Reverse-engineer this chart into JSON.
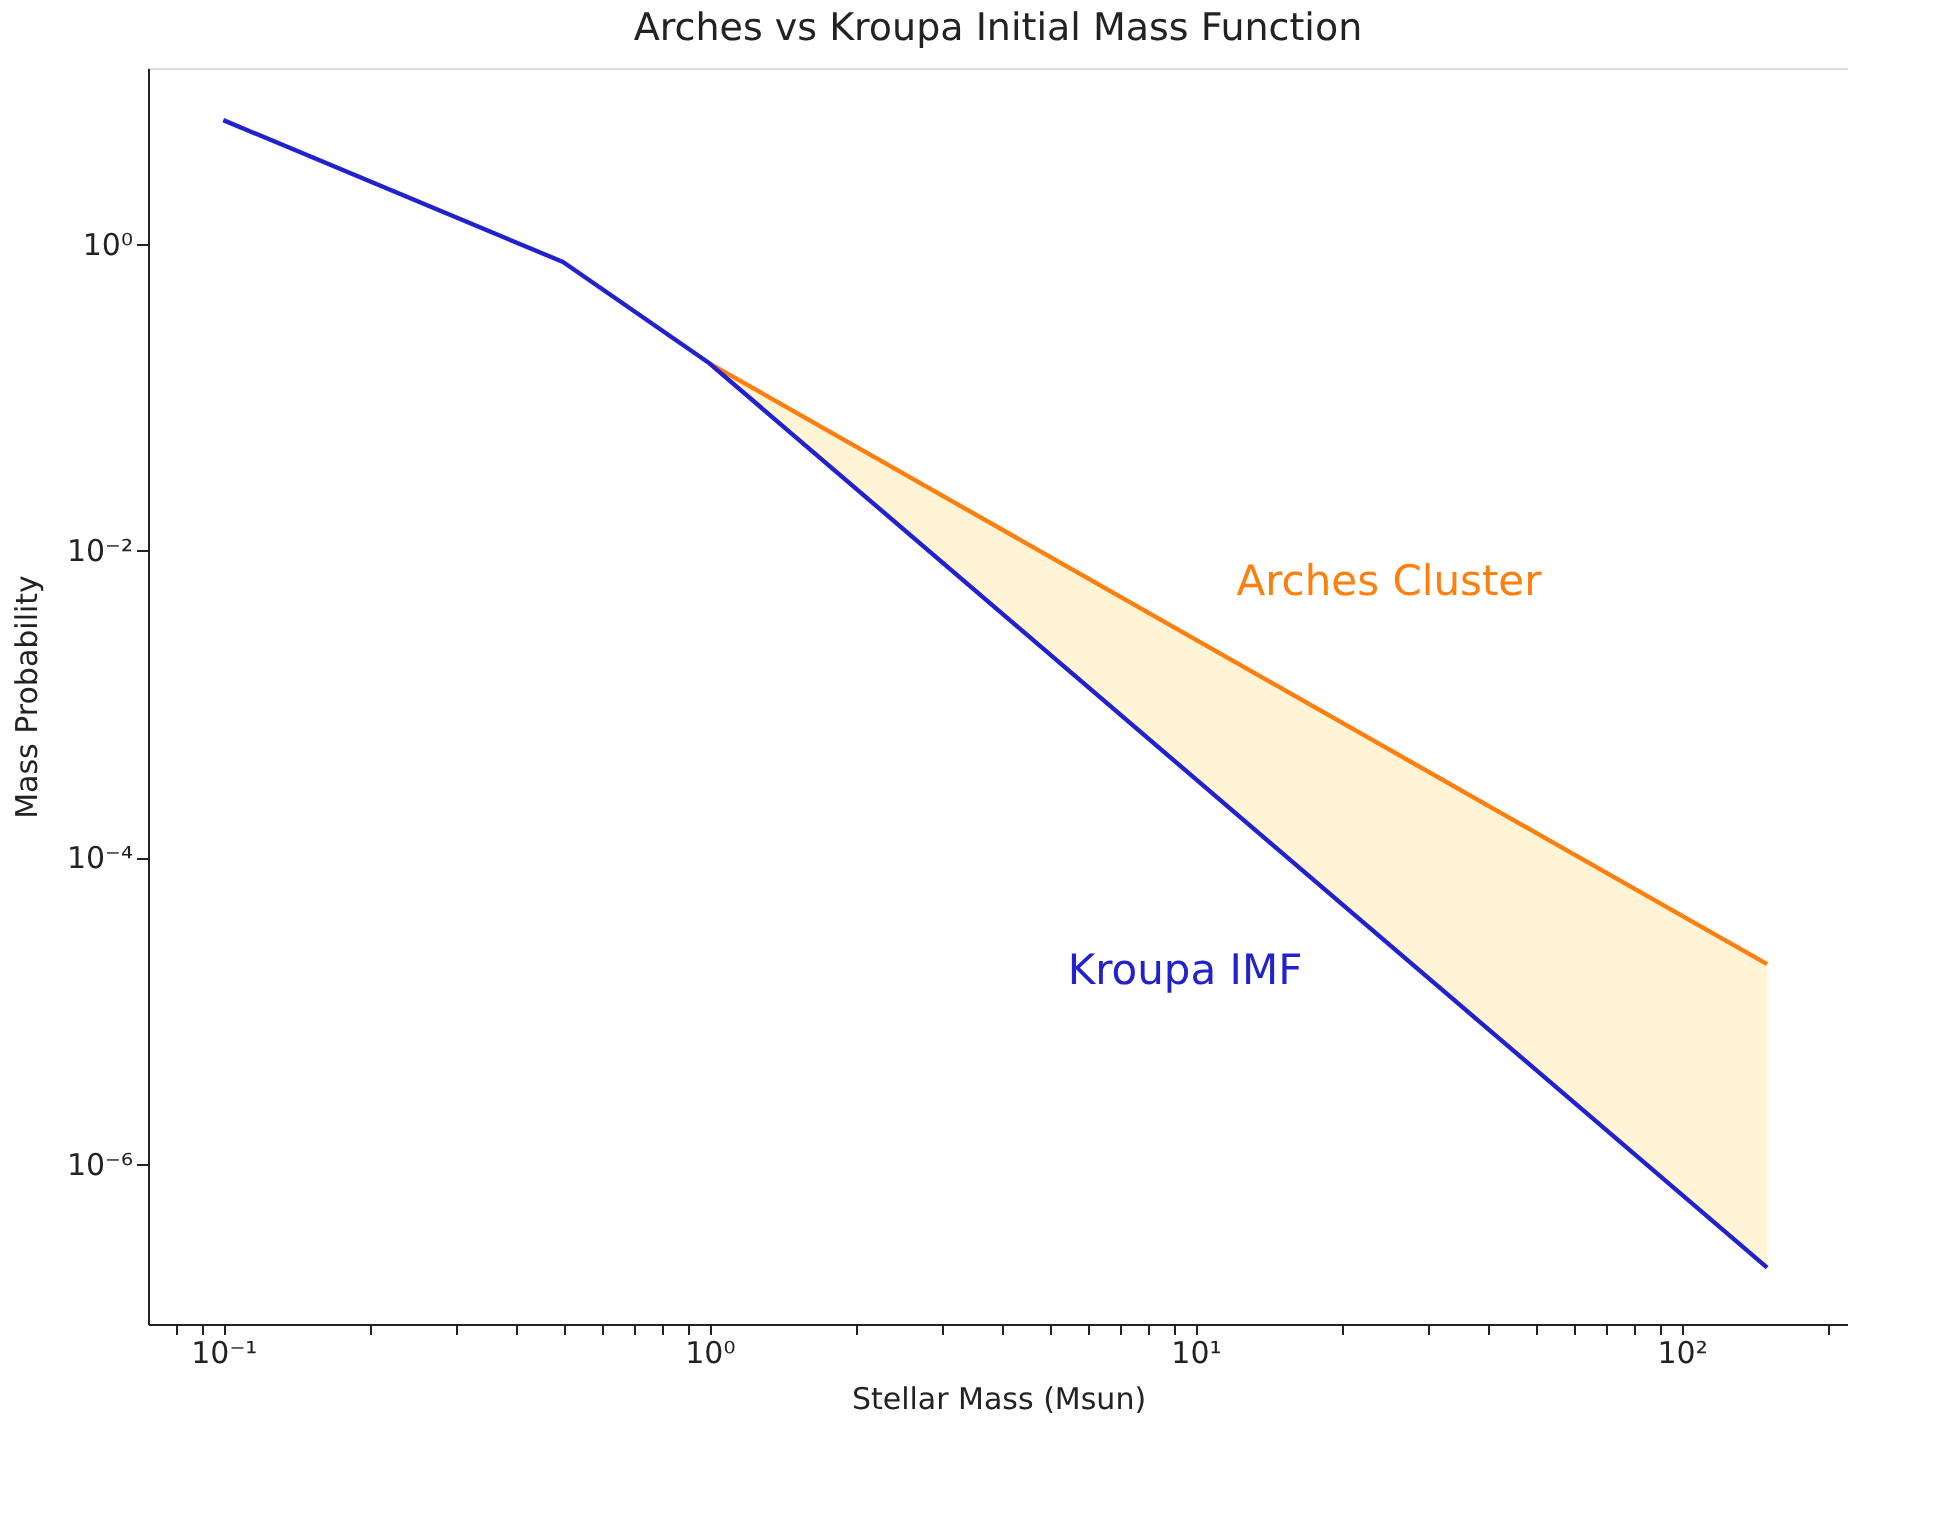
{
  "chart_data": {
    "type": "line",
    "title": "Arches vs Kroupa Initial Mass Function",
    "xlabel": "Stellar Mass (Msun)",
    "ylabel": "Mass Probability",
    "log": "xy",
    "grid": false,
    "legend": false,
    "marker": "none",
    "line_style": "solid",
    "xlim": [
      0.07,
      220
    ],
    "ylim": [
      9e-08,
      14
    ],
    "xticks": [
      {
        "value": 0.08,
        "label": null
      },
      {
        "value": 0.09,
        "label": null
      },
      {
        "value": 0.1,
        "label": "10⁻¹"
      },
      {
        "value": 0.2,
        "label": null
      },
      {
        "value": 0.3,
        "label": null
      },
      {
        "value": 0.4,
        "label": null
      },
      {
        "value": 0.5,
        "label": null
      },
      {
        "value": 0.6,
        "label": null
      },
      {
        "value": 0.7,
        "label": null
      },
      {
        "value": 0.8,
        "label": null
      },
      {
        "value": 0.9,
        "label": null
      },
      {
        "value": 1,
        "label": "10⁰"
      },
      {
        "value": 2,
        "label": null
      },
      {
        "value": 3,
        "label": null
      },
      {
        "value": 4,
        "label": null
      },
      {
        "value": 5,
        "label": null
      },
      {
        "value": 6,
        "label": null
      },
      {
        "value": 7,
        "label": null
      },
      {
        "value": 8,
        "label": null
      },
      {
        "value": 9,
        "label": null
      },
      {
        "value": 10,
        "label": "10¹"
      },
      {
        "value": 20,
        "label": null
      },
      {
        "value": 30,
        "label": null
      },
      {
        "value": 40,
        "label": null
      },
      {
        "value": 50,
        "label": null
      },
      {
        "value": 60,
        "label": null
      },
      {
        "value": 70,
        "label": null
      },
      {
        "value": 80,
        "label": null
      },
      {
        "value": 90,
        "label": null
      },
      {
        "value": 100,
        "label": "10²"
      },
      {
        "value": 200,
        "label": null
      }
    ],
    "yticks": [
      {
        "value": 1e-06,
        "label": "10⁻⁶"
      },
      {
        "value": 0.0001,
        "label": "10⁻⁴"
      },
      {
        "value": 0.01,
        "label": "10⁻²"
      },
      {
        "value": 1,
        "label": "10⁰"
      }
    ],
    "series": [
      {
        "name": "Arches Cluster",
        "color": "#ff7f0e",
        "x": [
          1,
          150
        ],
        "values": [
          0.166,
          2e-05
        ],
        "lower": [
          0.166,
          2.1e-07
        ],
        "upper": [
          0.166,
          2e-05
        ]
      },
      {
        "name": "Kroupa IMF",
        "color": "#2222cc",
        "x": [
          0.1,
          0.5,
          1,
          150
        ],
        "values": [
          6.4,
          0.76,
          0.166,
          2.1e-07
        ]
      }
    ]
  }
}
